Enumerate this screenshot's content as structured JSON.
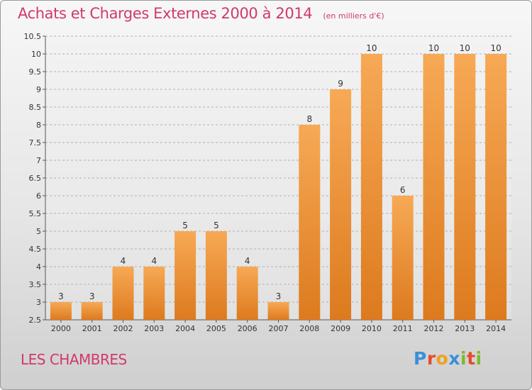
{
  "title": "Achats et Charges Externes 2000 à 2014",
  "unit_note": "(en milliers d'€)",
  "commune": "LES CHAMBRES",
  "logo": {
    "text": "Proxiti",
    "letter_colors": [
      "#3a8fd8",
      "#e84a2c",
      "#f0a020",
      "#3a8fd8",
      "#7dbb2c",
      "#e84a2c",
      "#7dbb2c"
    ]
  },
  "colors": {
    "bar_top": "#f7a955",
    "bar_bottom": "#dd7a1e",
    "grid": "#b0b0b0"
  },
  "chart_data": {
    "type": "bar",
    "categories": [
      "2000",
      "2001",
      "2002",
      "2003",
      "2004",
      "2005",
      "2006",
      "2007",
      "2008",
      "2009",
      "2010",
      "2011",
      "2012",
      "2013",
      "2014"
    ],
    "values": [
      3,
      3,
      4,
      4,
      5,
      5,
      4,
      3,
      8,
      9,
      10,
      6,
      10,
      10,
      10
    ],
    "ylim": [
      2.5,
      10.5
    ],
    "yticks": [
      "2.5",
      "3",
      "3.5",
      "4",
      "4.5",
      "5",
      "5.5",
      "6",
      "6.5",
      "7",
      "7.5",
      "8",
      "8.5",
      "9",
      "9.5",
      "10",
      "10.5"
    ],
    "grid": "horizontal dashed",
    "legend": "none"
  }
}
